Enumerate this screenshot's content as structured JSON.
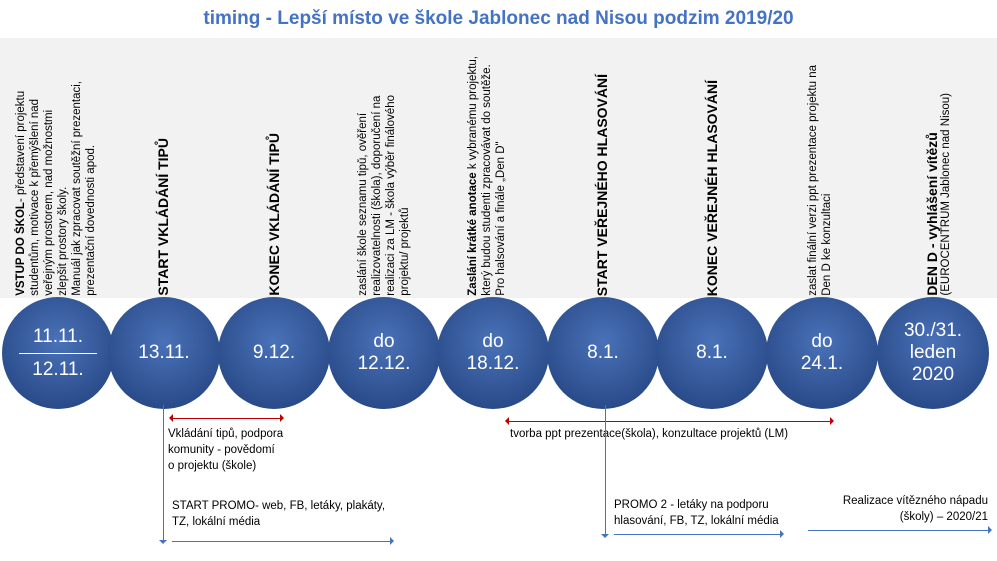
{
  "title": "timing - Lepší místo ve škole Jablonec nad Nisou podzim 2019/20",
  "milestones": [
    {
      "date1": "11.11.",
      "date2": "12.11.",
      "text_bold": "VSTUP DO ŠKOL",
      "text": "- představení projektu\nstudentům, motivace k přemýšlení nad\nveřejným prostorem, nad možnostmi\nzlepšit prostory školy.\nManuál jak zpracovat soutěžní prezentaci,\nprezentační dovednosti apod."
    },
    {
      "date1": "13.11.",
      "text_bold": "START VKLÁDÁNÍ TIPŮ"
    },
    {
      "date1": "9.12.",
      "text_bold": "KONEC VKLÁDÁNÍ TIPŮ"
    },
    {
      "date1": "do",
      "date2": "12.12.",
      "text": "zaslání škole seznamu tipů, ověření\nrealizovatelnosti (škola), doporučení na\nrealizaci za LM - škola výběr finálového\nprojektu/ projektů"
    },
    {
      "date1": "do",
      "date2": "18.12.",
      "text_bold": "Zaslání krátké anotace",
      "text": " k vybranému projektu,\nkterý budou studenti zpracovávat do soutěže.\nPro halsování a finále „Den D\""
    },
    {
      "date1": "8.1.",
      "text_bold": "START VEŘEJNÉHO HLASOVÁNÍ"
    },
    {
      "date1": "8.1.",
      "text_bold": "KONEC VEŘEJNÉH HLASOVÁNÍ"
    },
    {
      "date1": "do",
      "date2": "24.1.",
      "text": "zaslat finální verzi ppt prezentace projektu na\nDen D ke konzultaci"
    },
    {
      "date1": "30./31.",
      "date2": "leden",
      "date3": "2020",
      "text_bold": "DEN D - vyhlášení vítězů",
      "text": "\n(EUROCENTRUM Jablonec nad Nisou)"
    }
  ],
  "notes": {
    "tips": "Vkládání tipů, podpora\nkomunity - povědomí\no projektu (škole)",
    "promo1": "START PROMO- web, FB, letáky, plakáty,\nTZ, lokální média",
    "ppt": "tvorba ppt prezentace(škola), konzultace projektů (LM)",
    "promo2": "PROMO 2 - letáky na podporu\nhlasování, FB, TZ, lokální média",
    "realizace": "Realizace vítězného nápadu\n(školy) – 2020/21"
  }
}
